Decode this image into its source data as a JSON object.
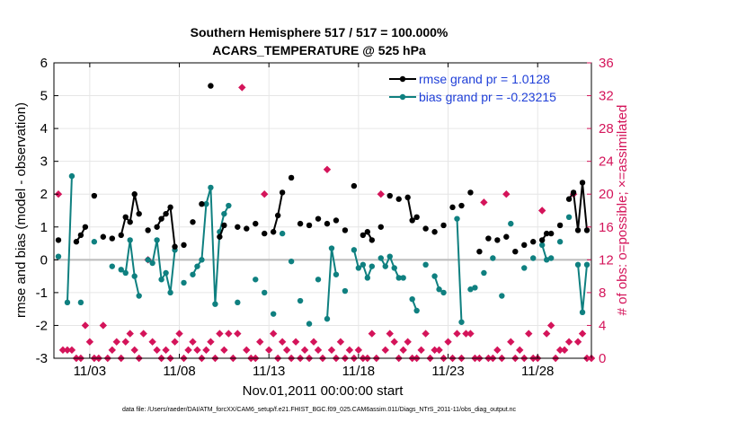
{
  "chart_data": {
    "type": "line",
    "title_line1": "Southern Hemisphere 517 / 517 = 100.000%",
    "title_line2": "ACARS_TEMPERATURE @ 525 hPa",
    "xlabel": "Nov.01,2011 00:00:00 start",
    "ylabel_left": "rmse and bias (model - observation)",
    "ylabel_right": "# of obs: o=possible; ×=assimilated",
    "footnote": "data file: /Users/raeder/DAI/ATM_forcXX/CAM6_setup/f.e21.FHIST_BGC.f09_025.CAM6assim.011/Diags_NTrS_2011-11/obs_diag_output.nc",
    "xlim": [
      1.0,
      31.0
    ],
    "ylim_left": [
      -3,
      6
    ],
    "ylim_right": [
      0,
      36
    ],
    "x_tick_values": [
      3,
      8,
      13,
      18,
      23,
      28
    ],
    "x_tick_labels": [
      "11/03",
      "11/08",
      "11/13",
      "11/18",
      "11/23",
      "11/28"
    ],
    "y_left_ticks": [
      -3,
      -2,
      -1,
      0,
      1,
      2,
      3,
      4,
      5,
      6
    ],
    "y_right_ticks": [
      0,
      4,
      8,
      12,
      16,
      20,
      24,
      28,
      32,
      36
    ],
    "colors": {
      "rmse": "#000000",
      "bias": "#0f8080",
      "count": "#d4145a",
      "zero_line": "#bbbbbb",
      "legend_text": "#1f3fd8",
      "right_axis": "#d4145a"
    },
    "series": [
      {
        "name": "rmse",
        "legend": "rmse grand pr = 1.0128",
        "color": "#000000",
        "points": [
          [
            1.25,
            0.6
          ],
          [
            2.25,
            0.55
          ],
          [
            2.5,
            0.75
          ],
          [
            2.75,
            1
          ],
          [
            3.25,
            1.95
          ],
          [
            3.75,
            0.7
          ],
          [
            4.25,
            0.65
          ],
          [
            4.75,
            0.75
          ],
          [
            5.0,
            1.3
          ],
          [
            5.25,
            1.15
          ],
          [
            5.5,
            2.0
          ],
          [
            5.75,
            1.4
          ],
          [
            6.25,
            0.9
          ],
          [
            6.75,
            1
          ],
          [
            7.0,
            1.25
          ],
          [
            7.25,
            1.4
          ],
          [
            7.5,
            1.6
          ],
          [
            7.75,
            0.4
          ],
          [
            8.25,
            0.45
          ],
          [
            8.75,
            1.15
          ],
          [
            9.25,
            1.7
          ],
          [
            9.75,
            5.3
          ],
          [
            10.25,
            0.7
          ],
          [
            10.5,
            1.05
          ],
          [
            11.25,
            1.0
          ],
          [
            11.75,
            0.95
          ],
          [
            12.25,
            1.1
          ],
          [
            12.75,
            0.8
          ],
          [
            13.25,
            0.85
          ],
          [
            13.5,
            1.35
          ],
          [
            13.75,
            2.05
          ],
          [
            14.25,
            2.5
          ],
          [
            14.75,
            1.1
          ],
          [
            15.25,
            1.05
          ],
          [
            15.75,
            1.25
          ],
          [
            16.25,
            1.1
          ],
          [
            16.75,
            1.2
          ],
          [
            17.25,
            0.9
          ],
          [
            17.75,
            2.25
          ],
          [
            18.25,
            0.75
          ],
          [
            18.5,
            0.85
          ],
          [
            18.75,
            0.6
          ],
          [
            19.25,
            1.0
          ],
          [
            19.75,
            1.95
          ],
          [
            20.25,
            1.85
          ],
          [
            20.75,
            1.9
          ],
          [
            21.0,
            1.2
          ],
          [
            21.25,
            1.3
          ],
          [
            21.75,
            0.95
          ],
          [
            22.25,
            0.85
          ],
          [
            22.75,
            1.05
          ],
          [
            23.25,
            1.6
          ],
          [
            23.75,
            1.65
          ],
          [
            24.25,
            2.05
          ],
          [
            24.75,
            0.25
          ],
          [
            25.25,
            0.65
          ],
          [
            25.75,
            0.6
          ],
          [
            26.25,
            0.7
          ],
          [
            26.75,
            0.25
          ],
          [
            27.25,
            0.45
          ],
          [
            27.75,
            0.55
          ],
          [
            28.25,
            0.6
          ],
          [
            28.5,
            0.8
          ],
          [
            28.75,
            0.8
          ],
          [
            29.25,
            1.05
          ],
          [
            29.75,
            1.85
          ],
          [
            30.0,
            2.05
          ],
          [
            30.25,
            0.9
          ],
          [
            30.5,
            2.35
          ],
          [
            30.75,
            0.9
          ]
        ]
      },
      {
        "name": "bias",
        "legend": "bias grand pr = -0.23215",
        "color": "#0f8080",
        "points": [
          [
            1.25,
            0.1
          ],
          [
            1.75,
            -1.3
          ],
          [
            2.0,
            2.55
          ],
          [
            2.5,
            -1.3
          ],
          [
            3.25,
            0.55
          ],
          [
            4.25,
            -0.2
          ],
          [
            4.75,
            -0.3
          ],
          [
            5.0,
            -0.4
          ],
          [
            5.25,
            0.6
          ],
          [
            5.5,
            -0.5
          ],
          [
            5.75,
            -1.1
          ],
          [
            6.25,
            0.0
          ],
          [
            6.5,
            -0.1
          ],
          [
            6.75,
            0.6
          ],
          [
            7.0,
            -0.6
          ],
          [
            7.25,
            -0.4
          ],
          [
            7.5,
            -1.0
          ],
          [
            7.75,
            0.3
          ],
          [
            8.25,
            -0.7
          ],
          [
            8.75,
            -0.45
          ],
          [
            9.0,
            -0.2
          ],
          [
            9.25,
            0.0
          ],
          [
            9.5,
            1.7
          ],
          [
            9.75,
            2.2
          ],
          [
            10.0,
            -1.35
          ],
          [
            10.25,
            0.85
          ],
          [
            10.5,
            1.4
          ],
          [
            10.75,
            1.65
          ],
          [
            11.25,
            -1.3
          ],
          [
            12.25,
            -0.6
          ],
          [
            12.75,
            -1.0
          ],
          [
            13.25,
            -1.65
          ],
          [
            13.75,
            0.8
          ],
          [
            14.25,
            -0.05
          ],
          [
            14.75,
            -1.25
          ],
          [
            15.25,
            -1.95
          ],
          [
            15.75,
            -0.6
          ],
          [
            16.25,
            -1.8
          ],
          [
            16.5,
            0.35
          ],
          [
            16.75,
            -0.45
          ],
          [
            17.25,
            -0.95
          ],
          [
            17.75,
            0.3
          ],
          [
            18.0,
            -0.25
          ],
          [
            18.25,
            -0.15
          ],
          [
            18.5,
            -0.55
          ],
          [
            18.75,
            -0.2
          ],
          [
            19.25,
            0.05
          ],
          [
            19.5,
            -0.2
          ],
          [
            19.75,
            0.1
          ],
          [
            20.0,
            -0.25
          ],
          [
            20.25,
            -0.55
          ],
          [
            20.5,
            -0.55
          ],
          [
            21.0,
            -1.2
          ],
          [
            21.25,
            -1.55
          ],
          [
            21.75,
            -0.15
          ],
          [
            22.25,
            -0.5
          ],
          [
            22.5,
            -0.9
          ],
          [
            22.75,
            -1.0
          ],
          [
            23.5,
            1.25
          ],
          [
            23.75,
            -1.9
          ],
          [
            24.25,
            -0.9
          ],
          [
            24.5,
            -0.85
          ],
          [
            25.0,
            -0.4
          ],
          [
            25.5,
            0.05
          ],
          [
            26.0,
            -1.1
          ],
          [
            26.5,
            1.1
          ],
          [
            27.25,
            -0.25
          ],
          [
            27.75,
            0.05
          ],
          [
            28.25,
            0.45
          ],
          [
            28.5,
            0.0
          ],
          [
            28.75,
            0.05
          ],
          [
            29.25,
            0.55
          ],
          [
            29.75,
            1.3
          ],
          [
            30.25,
            -0.15
          ],
          [
            30.5,
            -1.6
          ],
          [
            30.75,
            -0.15
          ]
        ]
      },
      {
        "name": "count_assimilated",
        "color": "#d4145a",
        "axis": "right",
        "points": [
          [
            1.25,
            20
          ],
          [
            1.5,
            1
          ],
          [
            1.75,
            1
          ],
          [
            2.0,
            1
          ],
          [
            2.25,
            0
          ],
          [
            2.5,
            0
          ],
          [
            2.75,
            4
          ],
          [
            3.0,
            2
          ],
          [
            3.25,
            0
          ],
          [
            3.5,
            0
          ],
          [
            3.75,
            4
          ],
          [
            4.0,
            0
          ],
          [
            4.25,
            1
          ],
          [
            4.5,
            2
          ],
          [
            4.75,
            0
          ],
          [
            5.0,
            2
          ],
          [
            5.25,
            3
          ],
          [
            5.5,
            1
          ],
          [
            5.75,
            0
          ],
          [
            6.0,
            3
          ],
          [
            6.25,
            12
          ],
          [
            6.5,
            2
          ],
          [
            6.75,
            1
          ],
          [
            7.0,
            0
          ],
          [
            7.25,
            1
          ],
          [
            7.5,
            0
          ],
          [
            7.75,
            2
          ],
          [
            8.0,
            3
          ],
          [
            8.25,
            0
          ],
          [
            8.5,
            1
          ],
          [
            8.75,
            2
          ],
          [
            9.0,
            1
          ],
          [
            9.25,
            0
          ],
          [
            9.5,
            1
          ],
          [
            9.75,
            2
          ],
          [
            10.0,
            0
          ],
          [
            10.25,
            3
          ],
          [
            10.5,
            1
          ],
          [
            10.75,
            3
          ],
          [
            11.0,
            0
          ],
          [
            11.25,
            3
          ],
          [
            11.5,
            33
          ],
          [
            11.75,
            1
          ],
          [
            12.0,
            0
          ],
          [
            12.25,
            0
          ],
          [
            12.5,
            2
          ],
          [
            12.75,
            20
          ],
          [
            13.0,
            1
          ],
          [
            13.25,
            3
          ],
          [
            13.5,
            0
          ],
          [
            13.75,
            2
          ],
          [
            14.0,
            1
          ],
          [
            14.25,
            0
          ],
          [
            14.5,
            2
          ],
          [
            14.75,
            0
          ],
          [
            15.0,
            1
          ],
          [
            15.25,
            0
          ],
          [
            15.5,
            2
          ],
          [
            15.75,
            1
          ],
          [
            16.0,
            0
          ],
          [
            16.25,
            23
          ],
          [
            16.5,
            1
          ],
          [
            16.75,
            0
          ],
          [
            17.0,
            2
          ],
          [
            17.25,
            0
          ],
          [
            17.5,
            1
          ],
          [
            17.75,
            0
          ],
          [
            18.0,
            1
          ],
          [
            18.25,
            0
          ],
          [
            18.5,
            0
          ],
          [
            18.75,
            3
          ],
          [
            19.0,
            0
          ],
          [
            19.25,
            20
          ],
          [
            19.5,
            1
          ],
          [
            19.75,
            3
          ],
          [
            20.0,
            2
          ],
          [
            20.25,
            0
          ],
          [
            20.5,
            1
          ],
          [
            20.75,
            2
          ],
          [
            21.0,
            0
          ],
          [
            21.25,
            0
          ],
          [
            21.5,
            1
          ],
          [
            21.75,
            3
          ],
          [
            22.0,
            0
          ],
          [
            22.25,
            1
          ],
          [
            22.5,
            1
          ],
          [
            22.75,
            0
          ],
          [
            23.0,
            2
          ],
          [
            23.25,
            0
          ],
          [
            23.5,
            3
          ],
          [
            23.75,
            0
          ],
          [
            24.0,
            3
          ],
          [
            24.25,
            3
          ],
          [
            24.5,
            0
          ],
          [
            24.75,
            0
          ],
          [
            25.0,
            19
          ],
          [
            25.25,
            0
          ],
          [
            25.5,
            0
          ],
          [
            25.75,
            1
          ],
          [
            26.0,
            0
          ],
          [
            26.25,
            20
          ],
          [
            26.5,
            2
          ],
          [
            26.75,
            0
          ],
          [
            27.0,
            1
          ],
          [
            27.25,
            0
          ],
          [
            27.5,
            3
          ],
          [
            27.75,
            0
          ],
          [
            28.0,
            0
          ],
          [
            28.25,
            18
          ],
          [
            28.5,
            3
          ],
          [
            28.75,
            4
          ],
          [
            29.0,
            0
          ],
          [
            29.25,
            1
          ],
          [
            29.5,
            1
          ],
          [
            29.75,
            2
          ],
          [
            30.0,
            20
          ],
          [
            30.25,
            2
          ],
          [
            30.5,
            3
          ],
          [
            30.75,
            0
          ],
          [
            31.0,
            0
          ]
        ]
      }
    ]
  }
}
